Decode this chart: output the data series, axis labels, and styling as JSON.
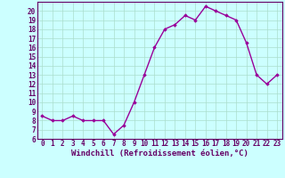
{
  "x": [
    0,
    1,
    2,
    3,
    4,
    5,
    6,
    7,
    8,
    9,
    10,
    11,
    12,
    13,
    14,
    15,
    16,
    17,
    18,
    19,
    20,
    21,
    22,
    23
  ],
  "y": [
    8.5,
    8.0,
    8.0,
    8.5,
    8.0,
    8.0,
    8.0,
    6.5,
    7.5,
    10.0,
    13.0,
    16.0,
    18.0,
    18.5,
    19.5,
    19.0,
    20.5,
    20.0,
    19.5,
    19.0,
    16.5,
    13.0,
    12.0,
    13.0
  ],
  "line_color": "#990099",
  "marker": "D",
  "marker_size": 1.8,
  "background_color": "#ccffff",
  "grid_color": "#aaddcc",
  "xlabel": "Windchill (Refroidissement éolien,°C)",
  "xlabel_fontsize": 6.5,
  "ylabel_ticks": [
    6,
    7,
    8,
    9,
    10,
    11,
    12,
    13,
    14,
    15,
    16,
    17,
    18,
    19,
    20
  ],
  "xticks": [
    0,
    1,
    2,
    3,
    4,
    5,
    6,
    7,
    8,
    9,
    10,
    11,
    12,
    13,
    14,
    15,
    16,
    17,
    18,
    19,
    20,
    21,
    22,
    23
  ],
  "ylim": [
    6,
    21
  ],
  "xlim": [
    -0.5,
    23.5
  ],
  "tick_fontsize": 5.5,
  "line_width": 1.0,
  "text_color": "#660066",
  "spine_color": "#660066"
}
